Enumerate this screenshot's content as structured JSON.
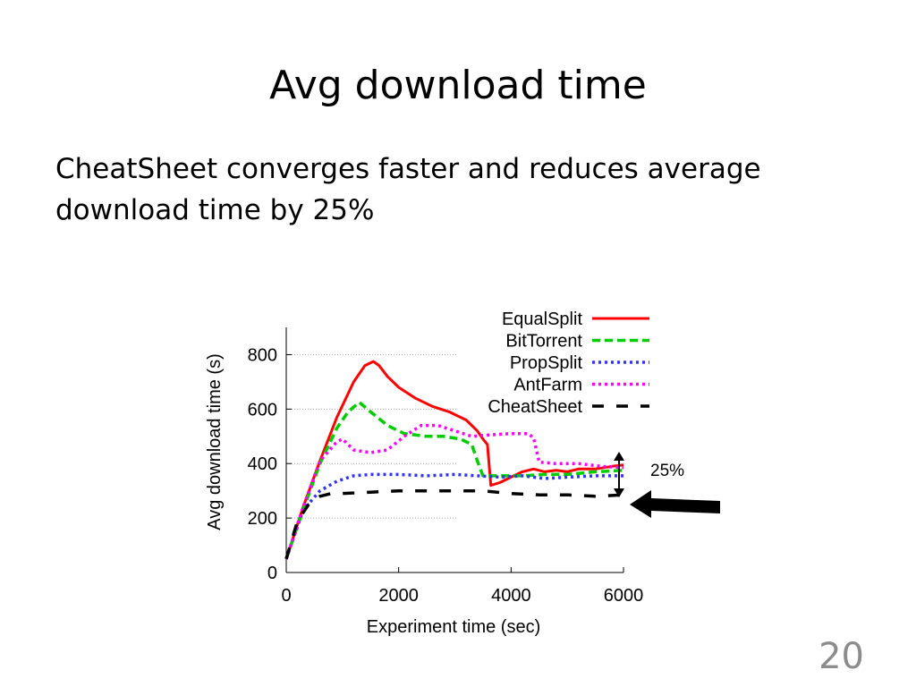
{
  "slide": {
    "title": "Avg download time",
    "bullet": "CheatSheet converges faster and reduces average download time by 25%",
    "number": "20"
  },
  "annotation": {
    "label": "25%"
  },
  "chart_data": {
    "type": "line",
    "title": "",
    "xlabel": "Experiment time (sec)",
    "ylabel": "Avg download time (s)",
    "xlim": [
      0,
      6000
    ],
    "ylim": [
      0,
      900
    ],
    "xticks": [
      0,
      2000,
      4000,
      6000
    ],
    "yticks": [
      0,
      200,
      400,
      600,
      800
    ],
    "grid": true,
    "legend_position": "top-right",
    "series": [
      {
        "name": "EqualSplit",
        "color": "#ff0000",
        "style": "solid",
        "x": [
          0,
          300,
          600,
          900,
          1200,
          1400,
          1550,
          1650,
          1800,
          2000,
          2300,
          2600,
          2900,
          3200,
          3400,
          3500,
          3580,
          3640,
          3800,
          4000,
          4200,
          4400,
          4600,
          4800,
          5000,
          5200,
          5500,
          5800,
          6000
        ],
        "y": [
          50,
          240,
          410,
          570,
          700,
          760,
          775,
          760,
          720,
          680,
          640,
          610,
          590,
          560,
          520,
          490,
          470,
          320,
          330,
          350,
          370,
          380,
          370,
          375,
          370,
          380,
          380,
          390,
          395
        ]
      },
      {
        "name": "BitTorrent",
        "color": "#00cc00",
        "style": "dashed",
        "x": [
          0,
          300,
          600,
          900,
          1100,
          1300,
          1500,
          1800,
          2100,
          2500,
          2800,
          3100,
          3300,
          3400,
          3500,
          3800,
          4200,
          4600,
          5000,
          5500,
          6000
        ],
        "y": [
          50,
          230,
          400,
          530,
          590,
          625,
          590,
          540,
          510,
          500,
          500,
          490,
          470,
          410,
          355,
          355,
          355,
          360,
          360,
          370,
          375
        ]
      },
      {
        "name": "PropSplit",
        "color": "#3333ff",
        "style": "dotted",
        "x": [
          0,
          300,
          600,
          900,
          1200,
          1500,
          2000,
          2500,
          3000,
          3400,
          3800,
          4200,
          4600,
          5000,
          5500,
          6000
        ],
        "y": [
          50,
          230,
          300,
          335,
          355,
          360,
          360,
          355,
          360,
          355,
          350,
          355,
          345,
          350,
          355,
          355
        ]
      },
      {
        "name": "AntFarm",
        "color": "#ff00ff",
        "style": "dotted",
        "x": [
          0,
          300,
          600,
          900,
          1000,
          1200,
          1500,
          1800,
          2100,
          2400,
          2700,
          3000,
          3300,
          3600,
          4000,
          4300,
          4400,
          4500,
          4800,
          5200,
          5600,
          6000
        ],
        "y": [
          50,
          240,
          410,
          480,
          490,
          450,
          440,
          450,
          500,
          540,
          540,
          520,
          500,
          505,
          510,
          510,
          495,
          405,
          400,
          400,
          390,
          385
        ]
      },
      {
        "name": "CheatSheet",
        "color": "#000000",
        "style": "longdash",
        "x": [
          0,
          200,
          400,
          600,
          800,
          1000,
          1500,
          2000,
          2500,
          3000,
          3500,
          4000,
          4500,
          5000,
          5500,
          6000
        ],
        "y": [
          50,
          190,
          250,
          280,
          290,
          290,
          295,
          300,
          300,
          300,
          300,
          290,
          285,
          285,
          280,
          285
        ]
      }
    ]
  }
}
